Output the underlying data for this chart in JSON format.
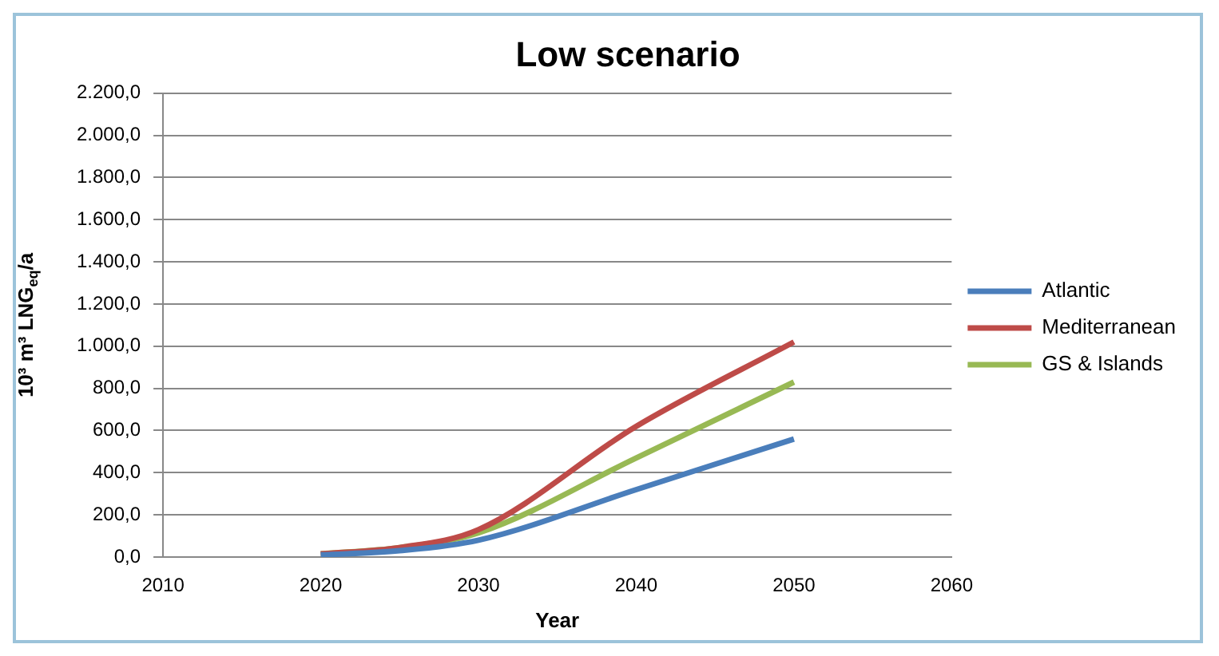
{
  "chart_data": {
    "type": "line",
    "title": "Low scenario",
    "xlabel": "Year",
    "ylabel": "10³ m³ LNG$_{eq}$/a",
    "x": [
      2020,
      2025,
      2030,
      2040,
      2050
    ],
    "series": [
      {
        "name": "Atlantic",
        "color": "#4a7ebb",
        "values": [
          10,
          30,
          80,
          320,
          560
        ]
      },
      {
        "name": "Mediterranean",
        "color": "#be4b48",
        "values": [
          15,
          45,
          130,
          620,
          1020
        ]
      },
      {
        "name": "GS & Islands",
        "color": "#98b954",
        "values": [
          15,
          45,
          115,
          470,
          830
        ]
      }
    ],
    "xlim": [
      2010,
      2060
    ],
    "xticks": [
      2010,
      2020,
      2030,
      2040,
      2050,
      2060
    ],
    "ylim": [
      0,
      2200
    ],
    "yticks": [
      {
        "value": 0,
        "label": "0,0"
      },
      {
        "value": 200,
        "label": "200,0"
      },
      {
        "value": 400,
        "label": "400,0"
      },
      {
        "value": 600,
        "label": "600,0"
      },
      {
        "value": 800,
        "label": "800,0"
      },
      {
        "value": 1000,
        "label": "1.000,0"
      },
      {
        "value": 1200,
        "label": "1.200,0"
      },
      {
        "value": 1400,
        "label": "1.400,0"
      },
      {
        "value": 1600,
        "label": "1.600,0"
      },
      {
        "value": 1800,
        "label": "1.800,0"
      },
      {
        "value": 2000,
        "label": "2.000,0"
      },
      {
        "value": 2200,
        "label": "2.200,0"
      }
    ],
    "grid": "y",
    "legend": "right",
    "marker": "none",
    "line_style": "solid"
  }
}
